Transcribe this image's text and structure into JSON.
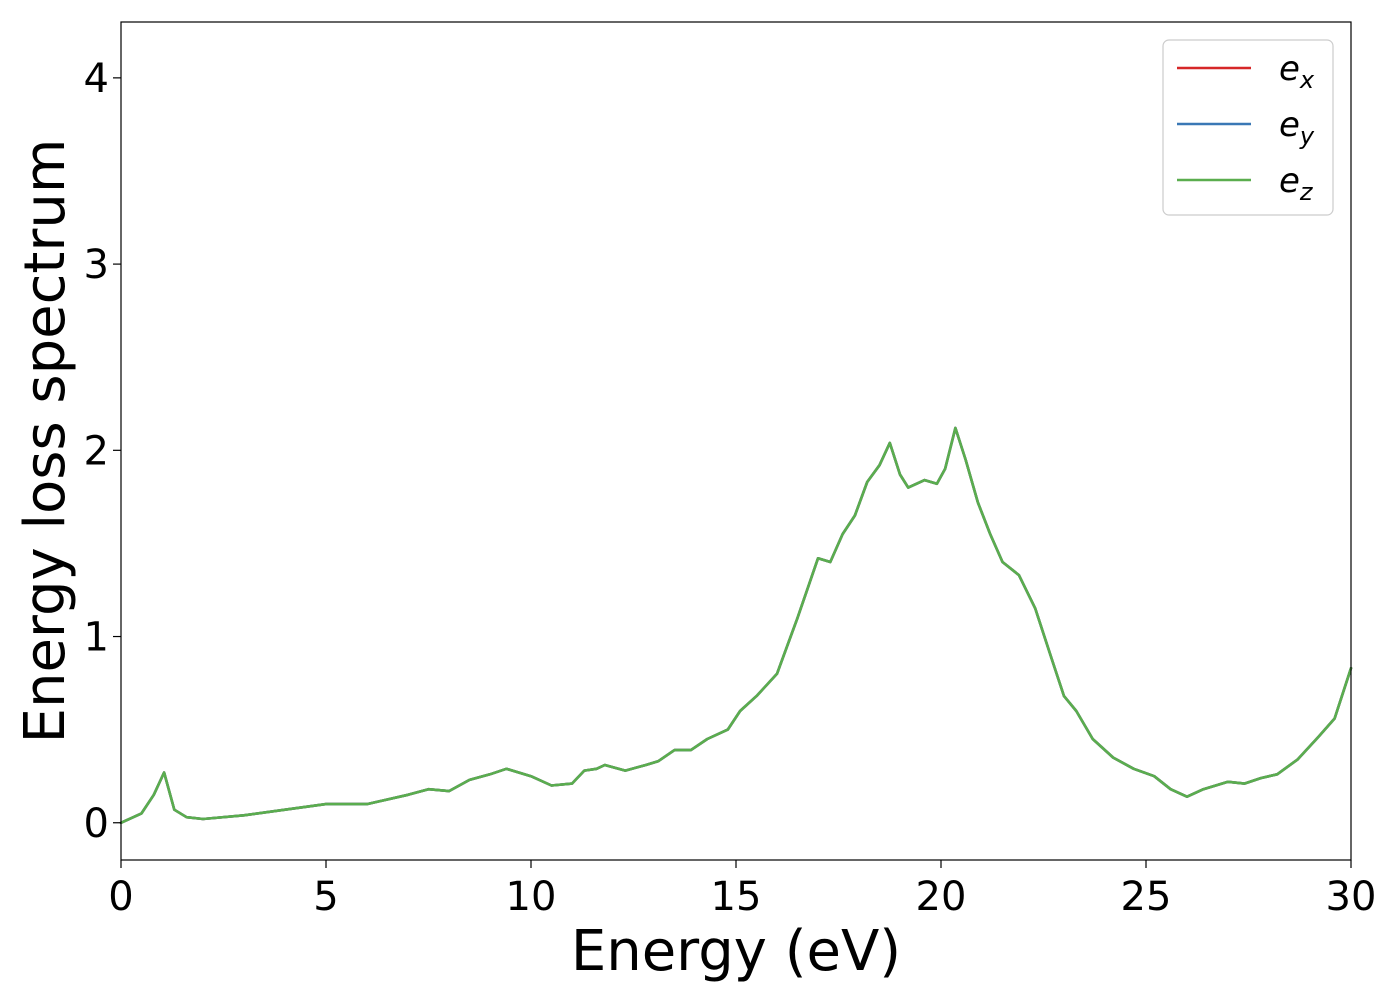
{
  "chart_data": {
    "type": "line",
    "xlabel": "Energy (eV)",
    "ylabel": "Energy loss spectrum",
    "xlim": [
      0,
      30
    ],
    "ylim": [
      -0.2,
      4.3
    ],
    "xticks": [
      0,
      5,
      10,
      15,
      20,
      25,
      30
    ],
    "xtick_labels": [
      "0",
      "5",
      "10",
      "15",
      "20",
      "25",
      "30"
    ],
    "yticks": [
      0,
      1,
      2,
      3,
      4
    ],
    "ytick_labels": [
      "0",
      "1",
      "2",
      "3",
      "4"
    ],
    "grid": false,
    "legend_position": "top-right",
    "legend": [
      {
        "base": "e",
        "sub": "x"
      },
      {
        "base": "e",
        "sub": "y"
      },
      {
        "base": "e",
        "sub": "z"
      }
    ],
    "x": [
      0,
      0.5,
      0.8,
      1.05,
      1.3,
      1.6,
      2.0,
      3.0,
      4.0,
      5.0,
      6.0,
      7.0,
      7.5,
      8.0,
      8.5,
      9.0,
      9.4,
      10.0,
      10.5,
      11.0,
      11.3,
      11.6,
      11.8,
      12.3,
      12.8,
      13.1,
      13.5,
      13.9,
      14.3,
      14.8,
      15.1,
      15.5,
      16.0,
      16.5,
      17.0,
      17.3,
      17.6,
      17.9,
      18.2,
      18.5,
      18.75,
      19.0,
      19.2,
      19.6,
      19.9,
      20.1,
      20.35,
      20.6,
      20.9,
      21.2,
      21.5,
      21.9,
      22.3,
      22.7,
      23.0,
      23.3,
      23.7,
      24.2,
      24.7,
      25.2,
      25.6,
      26.0,
      26.4,
      27.0,
      27.4,
      27.8,
      28.2,
      28.7,
      29.2,
      29.6,
      30.0
    ],
    "series": [
      {
        "name": "e_x",
        "color": "#d62728",
        "values": [
          0.0,
          0.05,
          0.15,
          0.27,
          0.07,
          0.03,
          0.02,
          0.04,
          0.07,
          0.1,
          0.1,
          0.15,
          0.18,
          0.17,
          0.23,
          0.26,
          0.29,
          0.25,
          0.2,
          0.21,
          0.28,
          0.29,
          0.31,
          0.28,
          0.31,
          0.33,
          0.39,
          0.39,
          0.45,
          0.5,
          0.6,
          0.68,
          0.8,
          1.1,
          1.42,
          1.4,
          1.55,
          1.65,
          1.83,
          1.92,
          2.04,
          1.87,
          1.8,
          1.84,
          1.82,
          1.9,
          2.12,
          1.95,
          1.72,
          1.55,
          1.4,
          1.33,
          1.15,
          0.88,
          0.68,
          0.6,
          0.45,
          0.35,
          0.29,
          0.25,
          0.18,
          0.14,
          0.18,
          0.22,
          0.21,
          0.24,
          0.26,
          0.34,
          0.46,
          0.56,
          0.83
        ]
      },
      {
        "name": "e_y",
        "color": "#3a78b5",
        "values": [
          0.0,
          0.05,
          0.15,
          0.27,
          0.07,
          0.03,
          0.02,
          0.04,
          0.07,
          0.1,
          0.1,
          0.15,
          0.18,
          0.17,
          0.23,
          0.26,
          0.29,
          0.25,
          0.2,
          0.21,
          0.28,
          0.29,
          0.31,
          0.28,
          0.31,
          0.33,
          0.39,
          0.39,
          0.45,
          0.5,
          0.6,
          0.68,
          0.8,
          1.1,
          1.42,
          1.4,
          1.55,
          1.65,
          1.83,
          1.92,
          2.04,
          1.87,
          1.8,
          1.84,
          1.82,
          1.9,
          2.12,
          1.95,
          1.72,
          1.55,
          1.4,
          1.33,
          1.15,
          0.88,
          0.68,
          0.6,
          0.45,
          0.35,
          0.29,
          0.25,
          0.18,
          0.14,
          0.18,
          0.22,
          0.21,
          0.24,
          0.26,
          0.34,
          0.46,
          0.56,
          0.83
        ]
      },
      {
        "name": "e_z",
        "color": "#5aad4e",
        "values": [
          0.0,
          0.05,
          0.15,
          0.27,
          0.07,
          0.03,
          0.02,
          0.04,
          0.07,
          0.1,
          0.1,
          0.15,
          0.18,
          0.17,
          0.23,
          0.26,
          0.29,
          0.25,
          0.2,
          0.21,
          0.28,
          0.29,
          0.31,
          0.28,
          0.31,
          0.33,
          0.39,
          0.39,
          0.45,
          0.5,
          0.6,
          0.68,
          0.8,
          1.1,
          1.42,
          1.4,
          1.55,
          1.65,
          1.83,
          1.92,
          2.04,
          1.87,
          1.8,
          1.84,
          1.82,
          1.9,
          2.12,
          1.95,
          1.72,
          1.55,
          1.4,
          1.33,
          1.15,
          0.88,
          0.68,
          0.6,
          0.45,
          0.35,
          0.29,
          0.25,
          0.18,
          0.14,
          0.18,
          0.22,
          0.21,
          0.24,
          0.26,
          0.34,
          0.46,
          0.56,
          0.83
        ]
      }
    ]
  }
}
